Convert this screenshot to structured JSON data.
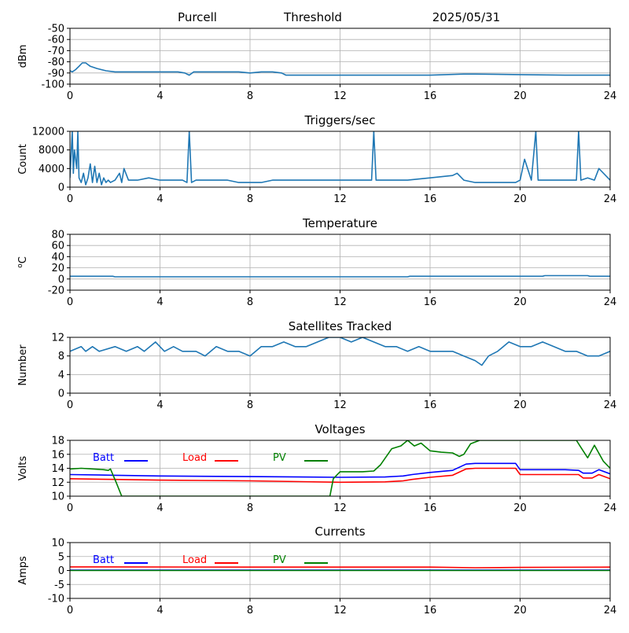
{
  "header": {
    "station": "Purcell",
    "mode": "Threshold",
    "date": "2025/05/31"
  },
  "colors": {
    "series": "#1f77b4",
    "batt": "#0000ff",
    "load": "#ff0000",
    "pv": "#008000",
    "grid": "#b0b0b0"
  },
  "chart_data": [
    {
      "type": "line",
      "title": "",
      "ylabel": "dBm",
      "xlim": [
        0,
        24
      ],
      "xticks": [
        0,
        4,
        8,
        12,
        16,
        20,
        24
      ],
      "ylim": [
        -100,
        -50
      ],
      "yticks": [
        -100,
        -90,
        -80,
        -70,
        -60,
        -50
      ],
      "grid": true,
      "series": [
        {
          "x": [
            0,
            0.1,
            0.25,
            0.4,
            0.55,
            0.7,
            0.9,
            1.2,
            1.6,
            2.0,
            3,
            4,
            4.8,
            5.1,
            5.3,
            5.5,
            6,
            7,
            7.5,
            8,
            8.5,
            9,
            9.4,
            9.6,
            10,
            12,
            14,
            16,
            17.5,
            18,
            20,
            22,
            24
          ],
          "y": [
            -88,
            -89,
            -87,
            -84,
            -81,
            -81,
            -84,
            -86,
            -88,
            -89,
            -89,
            -89,
            -89,
            -90,
            -92,
            -89,
            -89,
            -89,
            -89,
            -90,
            -89,
            -89,
            -90,
            -92,
            -92,
            -92,
            -92,
            -92,
            -91,
            -91,
            -91.5,
            -92,
            -92
          ]
        }
      ]
    },
    {
      "type": "line",
      "title": "Triggers/sec",
      "ylabel": "Count",
      "xlim": [
        0,
        24
      ],
      "xticks": [
        0,
        4,
        8,
        12,
        16,
        20,
        24
      ],
      "ylim": [
        0,
        12000
      ],
      "yticks": [
        0,
        4000,
        8000,
        12000
      ],
      "grid": true,
      "series": [
        {
          "x": [
            0,
            0.1,
            0.15,
            0.2,
            0.3,
            0.35,
            0.4,
            0.5,
            0.6,
            0.7,
            0.8,
            0.9,
            1.0,
            1.1,
            1.2,
            1.3,
            1.4,
            1.5,
            1.6,
            1.7,
            1.8,
            2.0,
            2.2,
            2.3,
            2.4,
            2.6,
            3.0,
            3.5,
            4.0,
            4.5,
            5.0,
            5.2,
            5.3,
            5.4,
            5.6,
            6.0,
            7.0,
            7.5,
            8.0,
            8.5,
            9.0,
            9.5,
            10.0,
            11.0,
            12.0,
            13.0,
            13.4,
            13.5,
            13.6,
            14.0,
            15.0,
            16.0,
            17.0,
            17.2,
            17.5,
            18.0,
            19.0,
            19.8,
            20.0,
            20.2,
            20.5,
            20.7,
            20.8,
            21.0,
            21.5,
            22.0,
            22.5,
            22.6,
            22.7,
            23.0,
            23.3,
            23.5,
            24.0
          ],
          "y": [
            2000,
            12000,
            3000,
            8000,
            4000,
            12000,
            2000,
            1000,
            3000,
            500,
            2000,
            5000,
            1000,
            4500,
            1000,
            3000,
            500,
            2000,
            1000,
            1500,
            1000,
            1500,
            3000,
            1000,
            4000,
            1500,
            1500,
            2000,
            1500,
            1500,
            1500,
            1000,
            12000,
            1000,
            1500,
            1500,
            1500,
            1000,
            1000,
            1000,
            1500,
            1500,
            1500,
            1500,
            1500,
            1500,
            1500,
            12000,
            1500,
            1500,
            1500,
            2000,
            2500,
            3000,
            1500,
            1000,
            1000,
            1000,
            1500,
            6000,
            1500,
            12000,
            1500,
            1500,
            1500,
            1500,
            1500,
            12000,
            1500,
            2000,
            1500,
            4000,
            1500
          ]
        }
      ]
    },
    {
      "type": "line",
      "title": "Temperature",
      "ylabel": "°C",
      "ylabel_super": "o",
      "ylabel_main": "C",
      "xlim": [
        0,
        24
      ],
      "xticks": [
        0,
        4,
        8,
        12,
        16,
        20,
        24
      ],
      "ylim": [
        -20,
        80
      ],
      "yticks": [
        -20,
        0,
        20,
        40,
        60,
        80
      ],
      "grid": true,
      "series": [
        {
          "x": [
            0,
            1.9,
            2.0,
            15.0,
            15.1,
            21.0,
            21.1,
            23.0,
            23.1,
            24.0
          ],
          "y": [
            5,
            5,
            4,
            4,
            5,
            5,
            6,
            6,
            5,
            5
          ]
        }
      ]
    },
    {
      "type": "line",
      "title": "Satellites Tracked",
      "ylabel": "Number",
      "xlim": [
        0,
        24
      ],
      "xticks": [
        0,
        4,
        8,
        12,
        16,
        20,
        24
      ],
      "ylim": [
        0,
        12
      ],
      "yticks": [
        0,
        4,
        8,
        12
      ],
      "grid": true,
      "series": [
        {
          "x": [
            0,
            0.5,
            0.7,
            1.0,
            1.3,
            2.0,
            2.5,
            3.0,
            3.3,
            3.8,
            4.2,
            4.6,
            5.0,
            5.6,
            6.0,
            6.5,
            7.0,
            7.5,
            8.0,
            8.5,
            9.0,
            9.5,
            10.0,
            10.5,
            11.0,
            11.5,
            12.0,
            12.5,
            13.0,
            13.5,
            14.0,
            14.5,
            15.0,
            15.5,
            16.0,
            16.5,
            17.0,
            17.5,
            18.0,
            18.3,
            18.6,
            19.0,
            19.5,
            20.0,
            20.5,
            21.0,
            21.5,
            22.0,
            22.5,
            23.0,
            23.5,
            24.0
          ],
          "y": [
            9,
            10,
            9,
            10,
            9,
            10,
            9,
            10,
            9,
            11,
            9,
            10,
            9,
            9,
            8,
            10,
            9,
            9,
            8,
            10,
            10,
            11,
            10,
            10,
            11,
            12,
            12,
            11,
            12,
            11,
            10,
            10,
            9,
            10,
            9,
            9,
            9,
            8,
            7,
            6,
            8,
            9,
            11,
            10,
            10,
            11,
            10,
            9,
            9,
            8,
            8,
            9
          ]
        }
      ]
    },
    {
      "type": "line",
      "title": "Voltages",
      "ylabel": "Volts",
      "xlim": [
        0,
        24
      ],
      "xticks": [
        0,
        4,
        8,
        12,
        16,
        20,
        24
      ],
      "ylim": [
        10,
        18
      ],
      "yticks": [
        10,
        12,
        14,
        16,
        18
      ],
      "grid": true,
      "legend": "top-left",
      "series": [
        {
          "name": "Batt",
          "color_key": "batt",
          "x": [
            0,
            2,
            4,
            8,
            12,
            14,
            14.8,
            15.2,
            16,
            17,
            17.6,
            18,
            19.8,
            20,
            22,
            22.6,
            22.8,
            23.2,
            23.5,
            24
          ],
          "y": [
            13.1,
            13.0,
            12.9,
            12.8,
            12.7,
            12.75,
            12.9,
            13.1,
            13.4,
            13.7,
            14.6,
            14.7,
            14.7,
            13.8,
            13.8,
            13.7,
            13.3,
            13.3,
            13.8,
            13.2
          ]
        },
        {
          "name": "Load",
          "color_key": "load",
          "x": [
            0,
            2,
            4,
            8,
            12,
            14,
            14.8,
            15.2,
            16,
            17,
            17.6,
            18,
            19.8,
            20,
            22,
            22.6,
            22.8,
            23.2,
            23.5,
            24
          ],
          "y": [
            12.5,
            12.4,
            12.3,
            12.2,
            12.0,
            12.05,
            12.2,
            12.4,
            12.7,
            13.0,
            13.9,
            14.0,
            14.0,
            13.1,
            13.1,
            13.1,
            12.6,
            12.6,
            13.1,
            12.5
          ]
        },
        {
          "name": "PV",
          "color_key": "pv",
          "x": [
            0,
            0.5,
            1.5,
            1.7,
            1.8,
            2.05,
            2.3,
            11.55,
            11.7,
            12,
            13,
            13.5,
            13.8,
            14.3,
            14.7,
            15.0,
            15.3,
            15.6,
            16.0,
            16.5,
            17.0,
            17.3,
            17.5,
            17.8,
            18.2,
            20.0,
            22.0,
            22.5,
            22.7,
            23.0,
            23.3,
            23.7,
            24.0
          ],
          "y": [
            13.9,
            14.0,
            13.8,
            13.7,
            13.9,
            12.0,
            10,
            10,
            12.5,
            13.5,
            13.5,
            13.6,
            14.5,
            16.8,
            17.2,
            18,
            17.2,
            17.6,
            16.5,
            16.3,
            16.2,
            15.7,
            16.0,
            17.5,
            18,
            18,
            18,
            18,
            17.0,
            15.5,
            17.3,
            15.0,
            14.0
          ]
        }
      ]
    },
    {
      "type": "line",
      "title": "Currents",
      "ylabel": "Amps",
      "xlim": [
        0,
        24
      ],
      "xticks": [
        0,
        4,
        8,
        12,
        16,
        20,
        24
      ],
      "ylim": [
        -10,
        10
      ],
      "yticks": [
        -10,
        -5,
        0,
        5,
        10
      ],
      "grid": true,
      "legend": "top-left",
      "series": [
        {
          "name": "Batt",
          "color_key": "batt",
          "x": [
            0,
            24
          ],
          "y": [
            0.1,
            0.1
          ]
        },
        {
          "name": "Load",
          "color_key": "load",
          "x": [
            0,
            8,
            16,
            18,
            20,
            24
          ],
          "y": [
            1.3,
            1.2,
            1.2,
            1.0,
            1.1,
            1.2
          ]
        },
        {
          "name": "PV",
          "color_key": "pv",
          "x": [
            0,
            24
          ],
          "y": [
            0,
            0
          ]
        }
      ]
    }
  ]
}
